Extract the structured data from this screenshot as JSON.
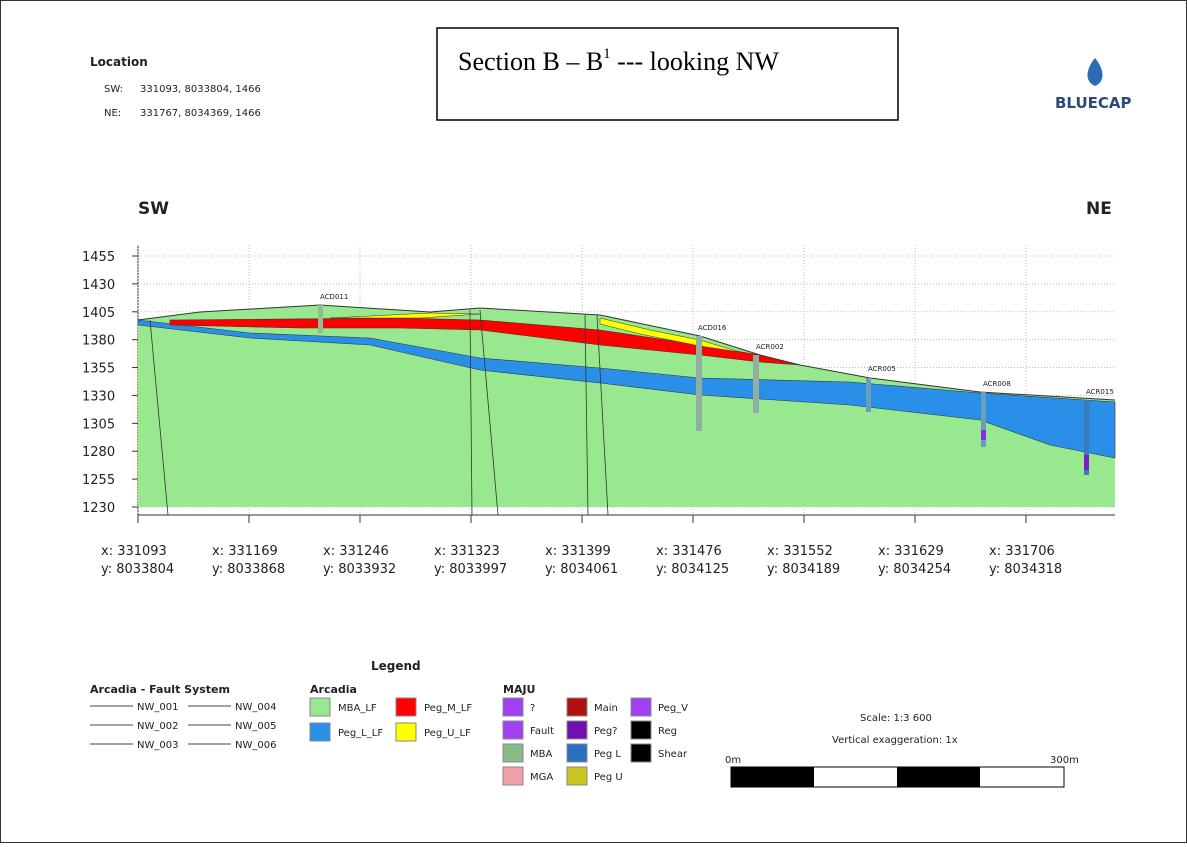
{
  "location": {
    "title": "Location",
    "sw_label": "SW:",
    "sw": "331093, 8033804, 1466",
    "ne_label": "NE:",
    "ne": "331767, 8034369, 1466"
  },
  "title": {
    "main": "Section B – B",
    "sup": "1",
    "rest": " --- looking NW"
  },
  "logo": "BLUECAP",
  "direction": {
    "left": "SW",
    "right": "NE"
  },
  "yticks": [
    1455,
    1430,
    1405,
    1380,
    1355,
    1330,
    1305,
    1280,
    1255,
    1230
  ],
  "xticks": [
    {
      "x": "x: 331093",
      "y": "y: 8033804"
    },
    {
      "x": "x: 331169",
      "y": "y: 8033868"
    },
    {
      "x": "x: 331246",
      "y": "y: 8033932"
    },
    {
      "x": "x: 331323",
      "y": "y: 8033997"
    },
    {
      "x": "x: 331399",
      "y": "y: 8034061"
    },
    {
      "x": "x: 331476",
      "y": "y: 8034125"
    },
    {
      "x": "x: 331552",
      "y": "y: 8034189"
    },
    {
      "x": "x: 331629",
      "y": "y: 8034254"
    },
    {
      "x": "x: 331706",
      "y": "y: 8034318"
    }
  ],
  "drillholes": [
    "ACD011",
    "ACD016",
    "ACR002",
    "ACR005",
    "ACR008",
    "ACR015"
  ],
  "legend": {
    "title": "Legend",
    "faults": {
      "title": "Arcadia - Fault System",
      "items": [
        "NW_001",
        "NW_002",
        "NW_003",
        "NW_004",
        "NW_005",
        "NW_006"
      ]
    },
    "arcadia": {
      "title": "Arcadia",
      "items": [
        "MBA_LF",
        "Peg_M_LF",
        "Peg_L_LF",
        "Peg_U_LF"
      ]
    },
    "maju": {
      "title": "MAJU",
      "items": [
        "?",
        "Main",
        "Peg_V",
        "Fault",
        "Peg?",
        "Reg",
        "MBA",
        "Peg L",
        "Shear",
        "MGA",
        "Peg U"
      ]
    }
  },
  "scale": {
    "ratio": "Scale: 1:3 600",
    "exaggeration": "Vertical exaggeration: 1x",
    "start": "0m",
    "end": "300m"
  }
}
